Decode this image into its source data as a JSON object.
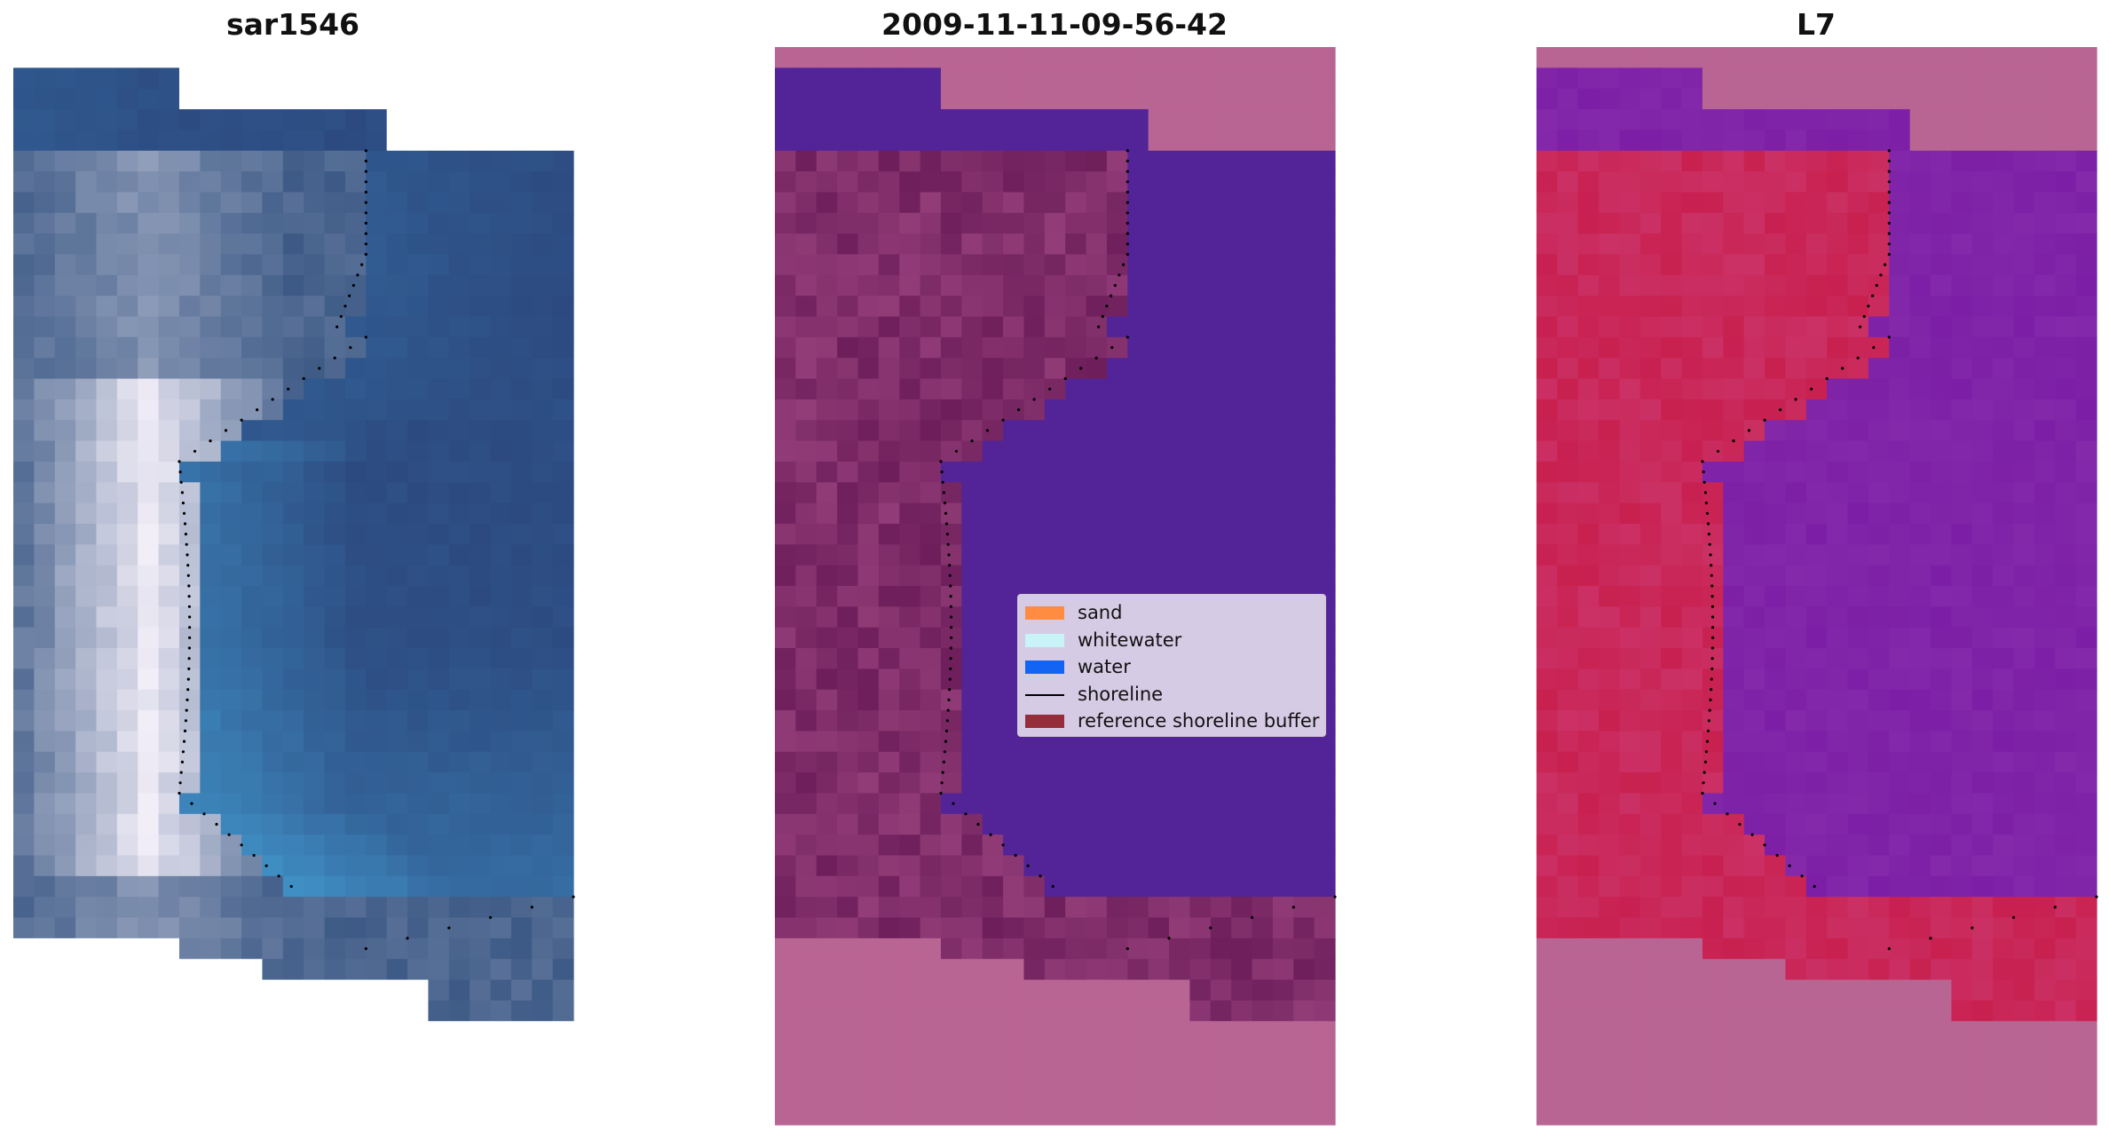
{
  "panels": [
    {
      "title": "sar1546",
      "kind": "rgb"
    },
    {
      "title": "2009-11-11-09-56-42",
      "kind": "classified"
    },
    {
      "title": "L7",
      "kind": "index"
    }
  ],
  "legend": {
    "items": [
      {
        "label": "sand",
        "color": "#ff8c40",
        "type": "patch"
      },
      {
        "label": "whitewater",
        "color": "#c8f4f8",
        "type": "patch"
      },
      {
        "label": "water",
        "color": "#1464f4",
        "type": "patch"
      },
      {
        "label": "shoreline",
        "color": "#000000",
        "type": "line"
      },
      {
        "label": "reference shoreline buffer",
        "color": "#962d3a",
        "type": "patch"
      }
    ]
  },
  "colors": {
    "rgb_water": "#2c4a80",
    "classified_water": "#532497",
    "classified_buffer": "#6e1f5b",
    "classified_nodata": "#b96593",
    "index_low": "#7c1fa6",
    "index_high": "#c8204f",
    "index_nodata": "#b96593"
  }
}
